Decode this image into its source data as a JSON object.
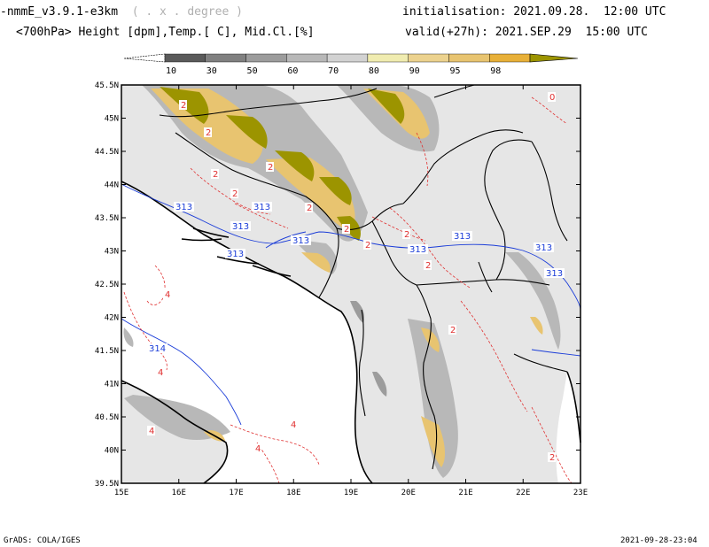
{
  "header": {
    "model_title": "-nmmE_v3.9.1-e3km",
    "unit_hint": "( . x . degree )",
    "field_desc": "<700hPa> Height [dpm],Temp.[ C], Mid.Cl.[%]",
    "init_label": "initialisation: 2021.09.28.  12:00 UTC",
    "valid_label": "valid(+27h): 2021.SEP.29  15:00 UTC"
  },
  "colorbar": {
    "labels": [
      "10",
      "30",
      "50",
      "60",
      "70",
      "80",
      "90",
      "95",
      "98"
    ],
    "colors": [
      "#5a5a5a",
      "#808080",
      "#9c9c9c",
      "#b8b8b8",
      "#d2d2d2",
      "#f0ecb0",
      "#ecd28e",
      "#e8c470",
      "#e8b038"
    ],
    "end_right_color": "#9c9400"
  },
  "axes": {
    "lon_labels": [
      "15E",
      "16E",
      "17E",
      "18E",
      "19E",
      "20E",
      "21E",
      "22E",
      "23E"
    ],
    "lat_labels": [
      "45.5N",
      "45N",
      "44.5N",
      "44N",
      "43.5N",
      "43N",
      "42.5N",
      "42N",
      "41.5N",
      "41N",
      "40.5N",
      "40N",
      "39.5N"
    ]
  },
  "contours": {
    "height_labels": [
      "313",
      "313",
      "313",
      "313",
      "313",
      "313",
      "313",
      "313",
      "313",
      "314"
    ],
    "temp_labels": [
      "2",
      "2",
      "2",
      "2",
      "2",
      "2",
      "2",
      "2",
      "2",
      "2",
      "2",
      "2",
      "4",
      "4",
      "4",
      "4",
      "4",
      "0"
    ]
  },
  "colors": {
    "land_bg": "#e6e6e6",
    "sea": "#ffffff",
    "high_cloud": "#9c9400",
    "height_contour": "#1a3cd8",
    "temp_contour": "#e03030"
  },
  "footer": {
    "left": "GrADS: COLA/IGES",
    "right": "2021-09-28-23:04"
  }
}
